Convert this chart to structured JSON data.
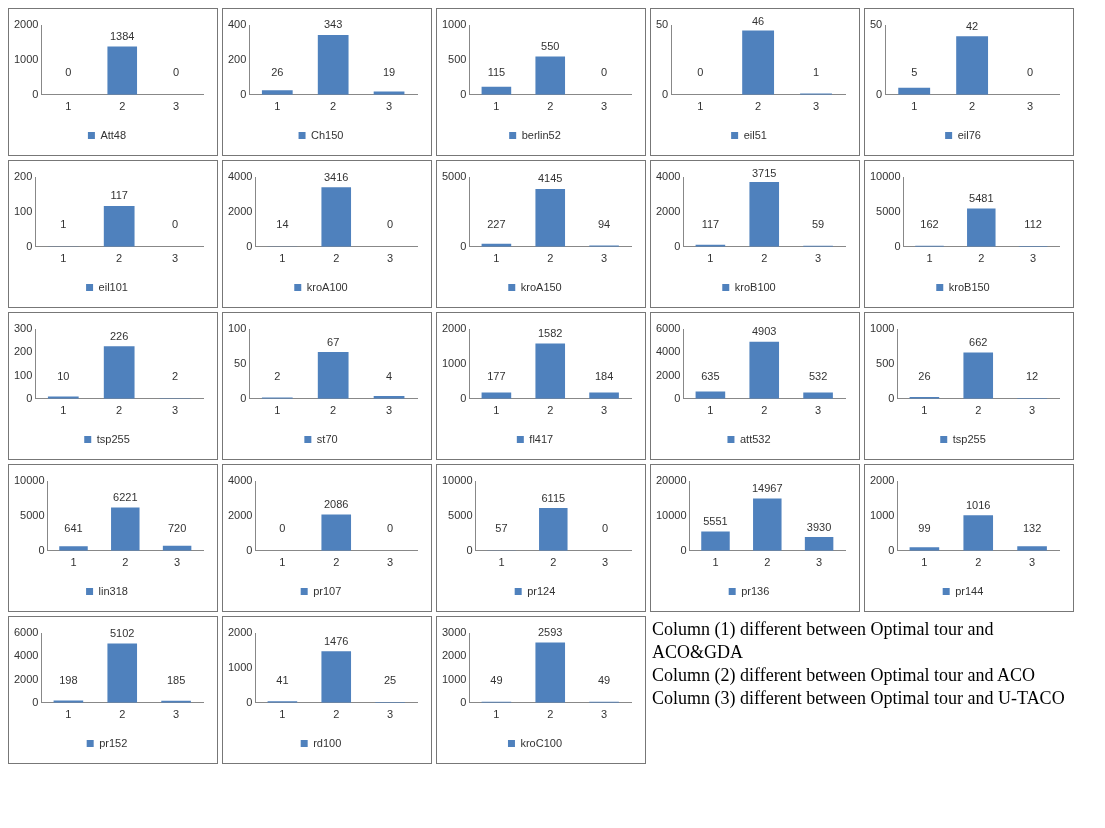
{
  "chart_data": [
    {
      "type": "bar",
      "categories": [
        "1",
        "2",
        "3"
      ],
      "series": [
        {
          "name": "Att48",
          "color": "#4f81bd",
          "values": [
            0,
            1384,
            0
          ]
        }
      ],
      "ylim": [
        0,
        2000
      ],
      "yticks": [
        0,
        1000,
        2000
      ],
      "data_labels": true,
      "legend": "bottom",
      "grid": false
    },
    {
      "type": "bar",
      "categories": [
        "1",
        "2",
        "3"
      ],
      "series": [
        {
          "name": "Ch150",
          "color": "#4f81bd",
          "values": [
            26,
            343,
            19
          ]
        }
      ],
      "ylim": [
        0,
        400
      ],
      "yticks": [
        0,
        200,
        400
      ],
      "data_labels": true,
      "legend": "bottom",
      "grid": false
    },
    {
      "type": "bar",
      "categories": [
        "1",
        "2",
        "3"
      ],
      "series": [
        {
          "name": "berlin52",
          "color": "#4f81bd",
          "values": [
            115,
            550,
            0
          ]
        }
      ],
      "ylim": [
        0,
        1000
      ],
      "yticks": [
        0,
        500,
        1000
      ],
      "data_labels": true,
      "legend": "bottom",
      "grid": false
    },
    {
      "type": "bar",
      "categories": [
        "1",
        "2",
        "3"
      ],
      "series": [
        {
          "name": "eil51",
          "color": "#4f81bd",
          "values": [
            0,
            46,
            1
          ]
        }
      ],
      "ylim": [
        0,
        50
      ],
      "yticks": [
        0,
        50
      ],
      "data_labels": true,
      "legend": "bottom",
      "grid": false
    },
    {
      "type": "bar",
      "categories": [
        "1",
        "2",
        "3"
      ],
      "series": [
        {
          "name": "eil76",
          "color": "#4f81bd",
          "values": [
            5,
            42,
            0
          ]
        }
      ],
      "ylim": [
        0,
        50
      ],
      "yticks": [
        0,
        50
      ],
      "data_labels": true,
      "legend": "bottom",
      "grid": false
    },
    {
      "type": "bar",
      "categories": [
        "1",
        "2",
        "3"
      ],
      "series": [
        {
          "name": "eil101",
          "color": "#4f81bd",
          "values": [
            1,
            117,
            0
          ]
        }
      ],
      "ylim": [
        0,
        200
      ],
      "yticks": [
        0,
        100,
        200
      ],
      "data_labels": true,
      "legend": "bottom",
      "grid": false
    },
    {
      "type": "bar",
      "categories": [
        "1",
        "2",
        "3"
      ],
      "series": [
        {
          "name": "kroA100",
          "color": "#4f81bd",
          "values": [
            14,
            3416,
            0
          ]
        }
      ],
      "ylim": [
        0,
        4000
      ],
      "yticks": [
        0,
        2000,
        4000
      ],
      "data_labels": true,
      "legend": "bottom",
      "grid": false
    },
    {
      "type": "bar",
      "categories": [
        "1",
        "2",
        "3"
      ],
      "series": [
        {
          "name": "kroA150",
          "color": "#4f81bd",
          "values": [
            227,
            4145,
            94
          ]
        }
      ],
      "ylim": [
        0,
        5000
      ],
      "yticks": [
        0,
        5000
      ],
      "data_labels": true,
      "legend": "bottom",
      "grid": false
    },
    {
      "type": "bar",
      "categories": [
        "1",
        "2",
        "3"
      ],
      "series": [
        {
          "name": "kroB100",
          "color": "#4f81bd",
          "values": [
            117,
            3715,
            59
          ]
        }
      ],
      "ylim": [
        0,
        4000
      ],
      "yticks": [
        0,
        2000,
        4000
      ],
      "data_labels": true,
      "legend": "bottom",
      "grid": false
    },
    {
      "type": "bar",
      "categories": [
        "1",
        "2",
        "3"
      ],
      "series": [
        {
          "name": "kroB150",
          "color": "#4f81bd",
          "values": [
            162,
            5481,
            112
          ]
        }
      ],
      "ylim": [
        0,
        10000
      ],
      "yticks": [
        0,
        5000,
        10000
      ],
      "data_labels": true,
      "legend": "bottom",
      "grid": false
    },
    {
      "type": "bar",
      "categories": [
        "1",
        "2",
        "3"
      ],
      "series": [
        {
          "name": "tsp255",
          "color": "#4f81bd",
          "values": [
            10,
            226,
            2
          ]
        }
      ],
      "ylim": [
        0,
        300
      ],
      "yticks": [
        0,
        100,
        200,
        300
      ],
      "data_labels": true,
      "legend": "bottom",
      "grid": false
    },
    {
      "type": "bar",
      "categories": [
        "1",
        "2",
        "3"
      ],
      "series": [
        {
          "name": "st70",
          "color": "#4f81bd",
          "values": [
            2,
            67,
            4
          ]
        }
      ],
      "ylim": [
        0,
        100
      ],
      "yticks": [
        0,
        50,
        100
      ],
      "data_labels": true,
      "legend": "bottom",
      "grid": false
    },
    {
      "type": "bar",
      "categories": [
        "1",
        "2",
        "3"
      ],
      "series": [
        {
          "name": "fl417",
          "color": "#4f81bd",
          "values": [
            177,
            1582,
            184
          ]
        }
      ],
      "ylim": [
        0,
        2000
      ],
      "yticks": [
        0,
        1000,
        2000
      ],
      "data_labels": true,
      "legend": "bottom",
      "grid": false
    },
    {
      "type": "bar",
      "categories": [
        "1",
        "2",
        "3"
      ],
      "series": [
        {
          "name": "att532",
          "color": "#4f81bd",
          "values": [
            635,
            4903,
            532
          ]
        }
      ],
      "ylim": [
        0,
        6000
      ],
      "yticks": [
        0,
        2000,
        4000,
        6000
      ],
      "data_labels": true,
      "legend": "bottom",
      "grid": false
    },
    {
      "type": "bar",
      "categories": [
        "1",
        "2",
        "3"
      ],
      "series": [
        {
          "name": "tsp255",
          "color": "#4f81bd",
          "values": [
            26,
            662,
            12
          ]
        }
      ],
      "ylim": [
        0,
        1000
      ],
      "yticks": [
        0,
        500,
        1000
      ],
      "data_labels": true,
      "legend": "bottom",
      "grid": false
    },
    {
      "type": "bar",
      "categories": [
        "1",
        "2",
        "3"
      ],
      "series": [
        {
          "name": "lin318",
          "color": "#4f81bd",
          "values": [
            641,
            6221,
            720
          ]
        }
      ],
      "ylim": [
        0,
        10000
      ],
      "yticks": [
        0,
        5000,
        10000
      ],
      "data_labels": true,
      "legend": "bottom",
      "grid": false
    },
    {
      "type": "bar",
      "categories": [
        "1",
        "2",
        "3"
      ],
      "series": [
        {
          "name": "pr107",
          "color": "#4f81bd",
          "values": [
            0,
            2086,
            0
          ]
        }
      ],
      "ylim": [
        0,
        4000
      ],
      "yticks": [
        0,
        2000,
        4000
      ],
      "data_labels": true,
      "legend": "bottom",
      "grid": false
    },
    {
      "type": "bar",
      "categories": [
        "1",
        "2",
        "3"
      ],
      "series": [
        {
          "name": "pr124",
          "color": "#4f81bd",
          "values": [
            57,
            6115,
            0
          ]
        }
      ],
      "ylim": [
        0,
        10000
      ],
      "yticks": [
        0,
        5000,
        10000
      ],
      "data_labels": true,
      "legend": "bottom",
      "grid": false
    },
    {
      "type": "bar",
      "categories": [
        "1",
        "2",
        "3"
      ],
      "series": [
        {
          "name": "pr136",
          "color": "#4f81bd",
          "values": [
            5551,
            14967,
            3930
          ]
        }
      ],
      "ylim": [
        0,
        20000
      ],
      "yticks": [
        0,
        10000,
        20000
      ],
      "data_labels": true,
      "legend": "bottom",
      "grid": false
    },
    {
      "type": "bar",
      "categories": [
        "1",
        "2",
        "3"
      ],
      "series": [
        {
          "name": "pr144",
          "color": "#4f81bd",
          "values": [
            99,
            1016,
            132
          ]
        }
      ],
      "ylim": [
        0,
        2000
      ],
      "yticks": [
        0,
        1000,
        2000
      ],
      "data_labels": true,
      "legend": "bottom",
      "grid": false
    },
    {
      "type": "bar",
      "categories": [
        "1",
        "2",
        "3"
      ],
      "series": [
        {
          "name": "pr152",
          "color": "#4f81bd",
          "values": [
            198,
            5102,
            185
          ]
        }
      ],
      "ylim": [
        0,
        6000
      ],
      "yticks": [
        0,
        2000,
        4000,
        6000
      ],
      "data_labels": true,
      "legend": "bottom",
      "grid": false
    },
    {
      "type": "bar",
      "categories": [
        "1",
        "2",
        "3"
      ],
      "series": [
        {
          "name": "rd100",
          "color": "#4f81bd",
          "values": [
            41,
            1476,
            25
          ]
        }
      ],
      "ylim": [
        0,
        2000
      ],
      "yticks": [
        0,
        1000,
        2000
      ],
      "data_labels": true,
      "legend": "bottom",
      "grid": false
    },
    {
      "type": "bar",
      "categories": [
        "1",
        "2",
        "3"
      ],
      "series": [
        {
          "name": "kroC100",
          "color": "#4f81bd",
          "values": [
            49,
            2593,
            49
          ]
        }
      ],
      "ylim": [
        0,
        3000
      ],
      "yticks": [
        0,
        1000,
        2000,
        3000
      ],
      "data_labels": true,
      "legend": "bottom",
      "grid": false
    },
    {
      "type": "other",
      "annotations": [
        "Column (1) different between Optimal tour and ACO&GDA",
        "Column (2) different between Optimal tour and ACO",
        "Column (3) different between Optimal tour and U-TACO"
      ]
    }
  ]
}
